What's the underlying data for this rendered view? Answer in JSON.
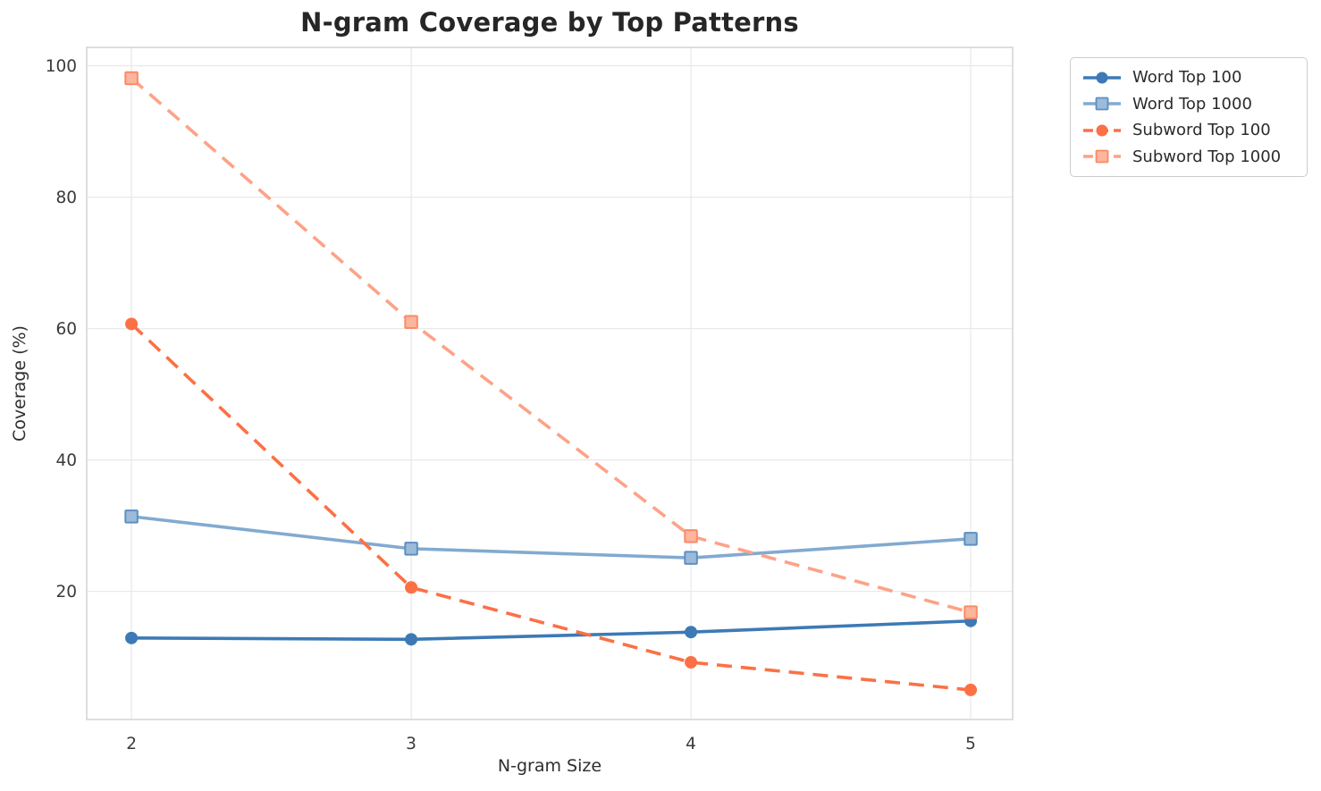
{
  "chart_data": {
    "type": "line",
    "title": "N-gram Coverage by Top Patterns",
    "xlabel": "N-gram Size",
    "ylabel": "Coverage (%)",
    "x": [
      2,
      3,
      4,
      5
    ],
    "xtick_labels": [
      "2",
      "3",
      "4",
      "5"
    ],
    "yticks": [
      20,
      40,
      60,
      80,
      100
    ],
    "ytick_labels": [
      "20",
      "40",
      "60",
      "80",
      "100"
    ],
    "xlim": [
      1.84,
      5.15
    ],
    "ylim": [
      0.5,
      102.8
    ],
    "grid": true,
    "legend_position": "upper right, outside plot",
    "series": [
      {
        "name": "Word Top 100",
        "values": [
          12.9,
          12.7,
          13.8,
          15.5
        ],
        "color": "#3d7ab5",
        "marker": "circle",
        "line_style": "solid"
      },
      {
        "name": "Word Top 1000",
        "values": [
          31.4,
          26.5,
          25.1,
          28.0
        ],
        "color": "#82aad0",
        "marker": "square",
        "line_style": "solid",
        "marker_fill": "#9cbbdb",
        "marker_edge": "#5d8fc1"
      },
      {
        "name": "Subword Top 100",
        "values": [
          60.7,
          20.6,
          9.2,
          5.0
        ],
        "color": "#fc7045",
        "marker": "circle",
        "line_style": "dashed"
      },
      {
        "name": "Subword Top 1000",
        "values": [
          98.1,
          61.0,
          28.4,
          16.8
        ],
        "color": "#fda287",
        "marker": "square",
        "line_style": "dashed",
        "marker_fill": "#fdb59e",
        "marker_edge": "#fb8a65"
      }
    ],
    "colors": {
      "grid": "#e9e9e9",
      "spine": "#d4d4d4",
      "background": "#ffffff",
      "text": "#262626"
    }
  }
}
